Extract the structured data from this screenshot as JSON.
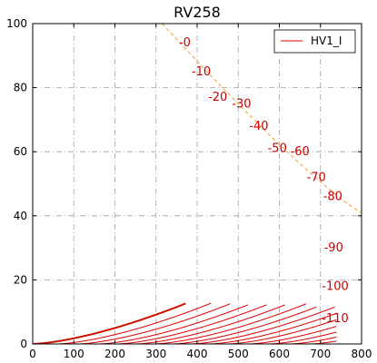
{
  "chart_data": {
    "type": "line",
    "title": "RV258",
    "xlabel": "",
    "ylabel": "",
    "xlim": [
      0,
      800
    ],
    "ylim": [
      0,
      100
    ],
    "x_ticks": [
      0,
      100,
      200,
      300,
      400,
      500,
      600,
      700,
      800
    ],
    "y_ticks": [
      0,
      20,
      40,
      60,
      80,
      100
    ],
    "grid": true,
    "legend": {
      "position": "top-right",
      "entries": [
        "HV1_I"
      ]
    },
    "colors": {
      "curve": "#dd0000",
      "curve_bold": "#cc1100",
      "label": "#cc0000",
      "max_dissipation": "#f0a030",
      "grid": "#a0a0a0"
    },
    "series": [
      {
        "label": "-0",
        "k": 0.00176,
        "offset": 0,
        "xmax": 372,
        "label_at": [
          370,
          94
        ]
      },
      {
        "label": "-10",
        "k": 0.00176,
        "offset": 60,
        "xmax": 435,
        "label_at": [
          410,
          85
        ]
      },
      {
        "label": "-20",
        "k": 0.00176,
        "offset": 110,
        "xmax": 480,
        "label_at": [
          450,
          77
        ]
      },
      {
        "label": "-30",
        "k": 0.00176,
        "offset": 160,
        "xmax": 525,
        "label_at": [
          508,
          75
        ]
      },
      {
        "label": "-40",
        "k": 0.00176,
        "offset": 205,
        "xmax": 570,
        "label_at": [
          550,
          68
        ]
      },
      {
        "label": "-50",
        "k": 0.00176,
        "offset": 250,
        "xmax": 615,
        "label_at": [
          595,
          61
        ]
      },
      {
        "label": "-60",
        "k": 0.00176,
        "offset": 295,
        "xmax": 665,
        "label_at": [
          650,
          60
        ]
      },
      {
        "label": "-70",
        "k": 0.00176,
        "offset": 340,
        "xmax": 690,
        "label_at": [
          690,
          52
        ]
      },
      {
        "label": "-80",
        "k": 0.00176,
        "offset": 385,
        "xmax": 735,
        "label_at": [
          730,
          46
        ]
      },
      {
        "label": "-90",
        "k": 0.00176,
        "offset": 430,
        "xmax": 740,
        "label_at": [
          732,
          30
        ]
      },
      {
        "label": "-100",
        "k": 0.00176,
        "offset": 475,
        "xmax": 740,
        "label_at": [
          736,
          18
        ]
      },
      {
        "label": "-110",
        "k": 0.00176,
        "offset": 525,
        "xmax": 740,
        "label_at": [
          736,
          8
        ]
      },
      {
        "label": "",
        "k": 0.00176,
        "offset": 575,
        "xmax": 740,
        "label_at": null
      },
      {
        "label": "",
        "k": 0.00176,
        "offset": 625,
        "xmax": 740,
        "label_at": null
      },
      {
        "label": "",
        "k": 0.00176,
        "offset": 675,
        "xmax": 740,
        "label_at": null
      }
    ],
    "max_dissipation_curve": {
      "label": "",
      "power": 16000,
      "xrange": [
        315,
        400
      ]
    }
  }
}
